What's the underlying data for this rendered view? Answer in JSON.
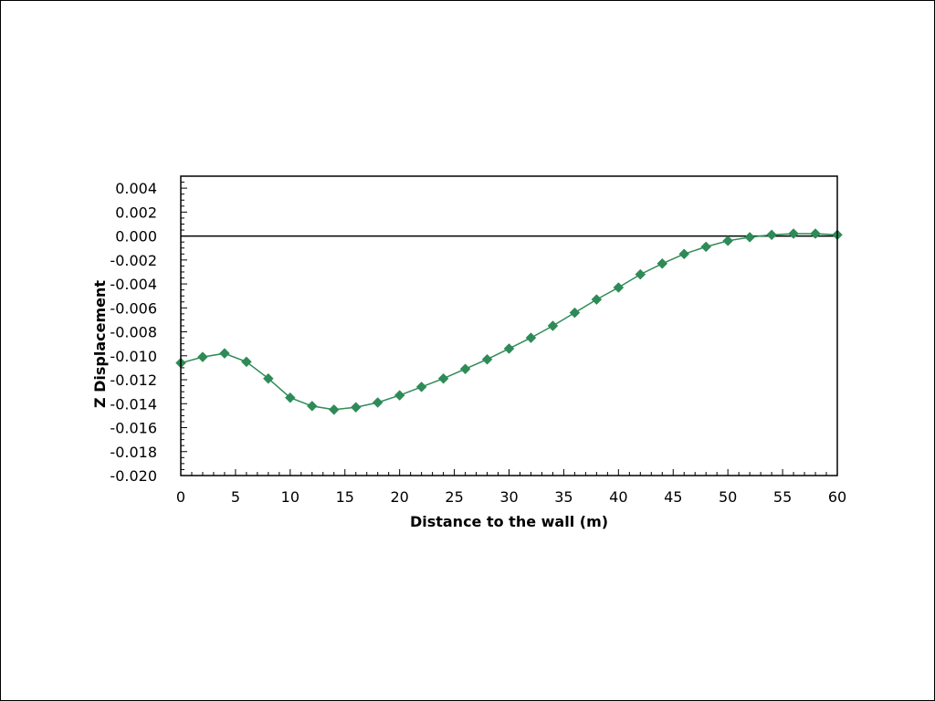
{
  "chart_data": {
    "type": "line",
    "title": "",
    "xlabel": "Distance to the wall (m)",
    "ylabel": "Z Displacement",
    "xlim": [
      0,
      60
    ],
    "ylim": [
      -0.02,
      0.005
    ],
    "x_ticks": [
      0,
      5,
      10,
      15,
      20,
      25,
      30,
      35,
      40,
      45,
      50,
      55,
      60
    ],
    "x_tick_labels": [
      "0",
      "5",
      "10",
      "15",
      "20",
      "25",
      "30",
      "35",
      "40",
      "45",
      "50",
      "55",
      "60"
    ],
    "y_ticks": [
      -0.02,
      -0.018,
      -0.016,
      -0.014,
      -0.012,
      -0.01,
      -0.008,
      -0.006,
      -0.004,
      -0.002,
      0,
      0.002,
      0.004
    ],
    "y_tick_labels": [
      "-0.020",
      "-0.018",
      "-0.016",
      "-0.014",
      "-0.012",
      "-0.010",
      "-0.008",
      "-0.006",
      "-0.004",
      "-0.002",
      "0.000",
      "0.002",
      "0.004"
    ],
    "grid": false,
    "legend": "none",
    "reference_line_y": 0,
    "series": [
      {
        "color": "#2e8b57",
        "marker": "diamond",
        "x": [
          0,
          2,
          4,
          6,
          8,
          10,
          12,
          14,
          16,
          18,
          20,
          22,
          24,
          26,
          28,
          30,
          32,
          34,
          36,
          38,
          40,
          42,
          44,
          46,
          48,
          50,
          52,
          54,
          56,
          58,
          60
        ],
        "y": [
          -0.0106,
          -0.0101,
          -0.0098,
          -0.0105,
          -0.0119,
          -0.0135,
          -0.0142,
          -0.0145,
          -0.0143,
          -0.0139,
          -0.0133,
          -0.0126,
          -0.0119,
          -0.0111,
          -0.0103,
          -0.0094,
          -0.0085,
          -0.0075,
          -0.0064,
          -0.0053,
          -0.0043,
          -0.0032,
          -0.0023,
          -0.0015,
          -0.0009,
          -0.0004,
          -0.0001,
          0.0001,
          0.0002,
          0.0002,
          0.0001
        ]
      }
    ]
  }
}
